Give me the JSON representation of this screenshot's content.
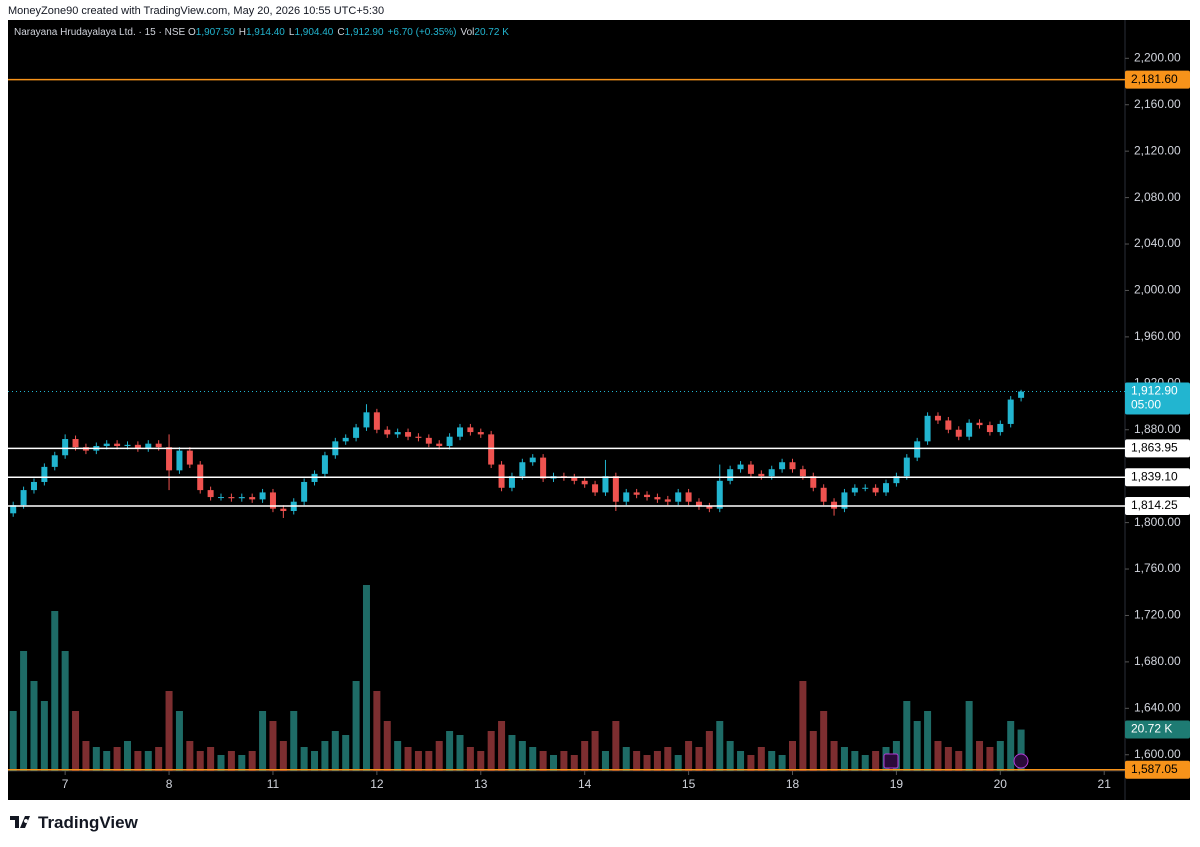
{
  "credit": "MoneyZone90 created with TradingView.com, May 20, 2026 10:55 UTC+5:30",
  "branding": "TradingView",
  "chart_data": {
    "type": "candlestick",
    "title": "Narayana Hrudayalaya Ltd. · 15 · NSE",
    "legend_values": [
      {
        "label": "O",
        "value": "1,907.50"
      },
      {
        "label": "H",
        "value": "1,914.40"
      },
      {
        "label": "L",
        "value": "1,904.40"
      },
      {
        "label": "C",
        "value": "1,912.90"
      }
    ],
    "change": "+6.70 (+0.35%)",
    "volume_legend": {
      "label": "Vol",
      "value": "20.72 K"
    },
    "up_color": "#22b5d0",
    "down_color": "#ef5350",
    "x": [
      0,
      1,
      2,
      3,
      4,
      5,
      6,
      7,
      8,
      9,
      10,
      11,
      12,
      13,
      14,
      15,
      16,
      17,
      18,
      19,
      20,
      21,
      22,
      23,
      24,
      25,
      26,
      27,
      28,
      29,
      30,
      31,
      32,
      33,
      34,
      35,
      36,
      37,
      38,
      39,
      40,
      41,
      42,
      43,
      44,
      45,
      46,
      47,
      48,
      49,
      50,
      51,
      52,
      53,
      54,
      55,
      56,
      57,
      58,
      59,
      60,
      61,
      62,
      63,
      64,
      65,
      66,
      67,
      68,
      69,
      70,
      71,
      72,
      73,
      74,
      75,
      76,
      77,
      78,
      79,
      80,
      81,
      82,
      83,
      84,
      85,
      86,
      87,
      88,
      89,
      90,
      91,
      92,
      93,
      94,
      95,
      96,
      97
    ],
    "xlim": [
      -0.5,
      107
    ],
    "xticks": [
      {
        "value": 5,
        "label": "7"
      },
      {
        "value": 15,
        "label": "8"
      },
      {
        "value": 25,
        "label": "11"
      },
      {
        "value": 35,
        "label": "12"
      },
      {
        "value": 45,
        "label": "13"
      },
      {
        "value": 55,
        "label": "14"
      },
      {
        "value": 65,
        "label": "15"
      },
      {
        "value": 75,
        "label": "18"
      },
      {
        "value": 85,
        "label": "19"
      },
      {
        "value": 95,
        "label": "20"
      },
      {
        "value": 105,
        "label": "21"
      }
    ],
    "ylim": [
      1586,
      2233
    ],
    "yticks": [
      {
        "value": 1600,
        "label": "1,600.00"
      },
      {
        "value": 1640,
        "label": "1,640.00"
      },
      {
        "value": 1680,
        "label": "1,680.00"
      },
      {
        "value": 1720,
        "label": "1,720.00"
      },
      {
        "value": 1760,
        "label": "1,760.00"
      },
      {
        "value": 1800,
        "label": "1,800.00"
      },
      {
        "value": 1840,
        "label": "1,840.00"
      },
      {
        "value": 1880,
        "label": "1,880.00"
      },
      {
        "value": 1920,
        "label": "1,920.00"
      },
      {
        "value": 1960,
        "label": "1,960.00"
      },
      {
        "value": 2000,
        "label": "2,000.00"
      },
      {
        "value": 2040,
        "label": "2,040.00"
      },
      {
        "value": 2080,
        "label": "2,080.00"
      },
      {
        "value": 2120,
        "label": "2,120.00"
      },
      {
        "value": 2160,
        "label": "2,160.00"
      },
      {
        "value": 2200,
        "label": "2,200.00"
      }
    ],
    "open": [
      1808,
      1815,
      1828,
      1835,
      1848,
      1858,
      1872,
      1865,
      1862,
      1866,
      1868,
      1866,
      1867,
      1864,
      1868,
      1865,
      1845,
      1862,
      1850,
      1828,
      1822,
      1822,
      1821,
      1822,
      1820,
      1826,
      1812,
      1810,
      1818,
      1835,
      1842,
      1858,
      1870,
      1873,
      1882,
      1895,
      1880,
      1876,
      1878,
      1874,
      1873,
      1868,
      1866,
      1874,
      1882,
      1878,
      1876,
      1850,
      1830,
      1840,
      1852,
      1856,
      1838,
      1840,
      1839,
      1836,
      1833,
      1826,
      1840,
      1818,
      1826,
      1824,
      1822,
      1820,
      1818,
      1826,
      1818,
      1814,
      1812,
      1836,
      1846,
      1850,
      1842,
      1840,
      1846,
      1852,
      1846,
      1840,
      1830,
      1818,
      1812,
      1826,
      1830,
      1830,
      1826,
      1834,
      1840,
      1856,
      1870,
      1892,
      1888,
      1880,
      1874,
      1886,
      1884,
      1878,
      1885,
      1907.5
    ],
    "high": [
      1818,
      1831,
      1838,
      1851,
      1861,
      1876,
      1875,
      1868,
      1869,
      1871,
      1871,
      1870,
      1870,
      1871,
      1871,
      1876,
      1865,
      1865,
      1853,
      1831,
      1825,
      1825,
      1825,
      1825,
      1829,
      1829,
      1815,
      1821,
      1838,
      1845,
      1861,
      1873,
      1876,
      1885,
      1902,
      1898,
      1883,
      1881,
      1881,
      1877,
      1876,
      1871,
      1877,
      1885,
      1885,
      1881,
      1879,
      1853,
      1843,
      1855,
      1859,
      1859,
      1843,
      1843,
      1842,
      1839,
      1836,
      1854,
      1843,
      1829,
      1829,
      1827,
      1825,
      1823,
      1829,
      1829,
      1821,
      1817,
      1850,
      1849,
      1853,
      1853,
      1845,
      1849,
      1855,
      1855,
      1849,
      1843,
      1833,
      1821,
      1829,
      1833,
      1833,
      1833,
      1837,
      1843,
      1859,
      1873,
      1895,
      1895,
      1891,
      1883,
      1889,
      1889,
      1887,
      1888,
      1909,
      1914.4
    ],
    "low": [
      1805,
      1812,
      1825,
      1832,
      1845,
      1855,
      1862,
      1859,
      1859,
      1863,
      1863,
      1863,
      1861,
      1861,
      1862,
      1828,
      1842,
      1847,
      1825,
      1819,
      1819,
      1818,
      1818,
      1817,
      1817,
      1809,
      1804,
      1807,
      1815,
      1832,
      1839,
      1855,
      1867,
      1870,
      1879,
      1877,
      1873,
      1873,
      1871,
      1870,
      1865,
      1863,
      1863,
      1871,
      1875,
      1873,
      1847,
      1827,
      1827,
      1837,
      1849,
      1835,
      1835,
      1836,
      1833,
      1830,
      1823,
      1823,
      1810,
      1815,
      1821,
      1819,
      1817,
      1815,
      1815,
      1815,
      1811,
      1809,
      1809,
      1833,
      1843,
      1839,
      1837,
      1837,
      1843,
      1843,
      1837,
      1827,
      1815,
      1806,
      1809,
      1823,
      1827,
      1823,
      1823,
      1831,
      1837,
      1853,
      1867,
      1885,
      1877,
      1871,
      1871,
      1881,
      1875,
      1875,
      1882,
      1904.4
    ],
    "close": [
      1815,
      1828,
      1835,
      1848,
      1858,
      1872,
      1865,
      1862,
      1866,
      1868,
      1866,
      1867,
      1864,
      1868,
      1865,
      1845,
      1862,
      1850,
      1828,
      1822,
      1822,
      1821,
      1822,
      1820,
      1826,
      1812,
      1810,
      1818,
      1835,
      1842,
      1858,
      1870,
      1873,
      1882,
      1895,
      1880,
      1876,
      1878,
      1874,
      1873,
      1868,
      1866,
      1874,
      1882,
      1878,
      1876,
      1850,
      1830,
      1840,
      1852,
      1856,
      1838,
      1840,
      1839,
      1836,
      1833,
      1826,
      1840,
      1818,
      1826,
      1824,
      1822,
      1820,
      1818,
      1826,
      1818,
      1814,
      1812,
      1836,
      1846,
      1850,
      1842,
      1840,
      1846,
      1852,
      1846,
      1840,
      1830,
      1818,
      1812,
      1826,
      1830,
      1830,
      1826,
      1834,
      1840,
      1856,
      1870,
      1892,
      1888,
      1880,
      1874,
      1886,
      1884,
      1878,
      1885,
      1906,
      1912.9
    ],
    "volume": {
      "values": [
        30,
        60,
        45,
        35,
        80,
        60,
        30,
        15,
        12,
        10,
        12,
        15,
        10,
        10,
        12,
        40,
        30,
        15,
        10,
        12,
        8,
        10,
        8,
        10,
        30,
        25,
        15,
        30,
        12,
        10,
        15,
        20,
        18,
        45,
        93,
        40,
        25,
        15,
        12,
        10,
        10,
        15,
        20,
        18,
        12,
        10,
        20,
        25,
        18,
        15,
        12,
        10,
        8,
        10,
        8,
        15,
        20,
        10,
        25,
        12,
        10,
        8,
        10,
        12,
        8,
        15,
        12,
        20,
        25,
        15,
        10,
        8,
        12,
        10,
        8,
        15,
        45,
        20,
        30,
        15,
        12,
        10,
        8,
        10,
        12,
        15,
        35,
        25,
        30,
        15,
        12,
        10,
        35,
        15,
        12,
        15,
        25,
        20.72
      ],
      "ylim": [
        0,
        200
      ],
      "up_color": "#1e6b66",
      "down_color": "#7d2e30",
      "last_label": {
        "value": 20.72,
        "label": "20.72 K",
        "color": "#1e7b73"
      }
    },
    "levels": [
      {
        "value": 2181.6,
        "label": "2,181.60",
        "color": "#f7931a"
      },
      {
        "value": 1863.95,
        "label": "1,863.95",
        "color": "#ffffff"
      },
      {
        "value": 1839.1,
        "label": "1,839.10",
        "color": "#ffffff"
      },
      {
        "value": 1814.25,
        "label": "1,814.25",
        "color": "#ffffff"
      }
    ],
    "last_price": {
      "value": 1912.9,
      "label": "1,912.90",
      "countdown": "05:00",
      "color": "#22b5d0"
    },
    "bottom_label": {
      "value": 1587.05,
      "label": "1,587.05",
      "color": "#f7931a"
    }
  }
}
